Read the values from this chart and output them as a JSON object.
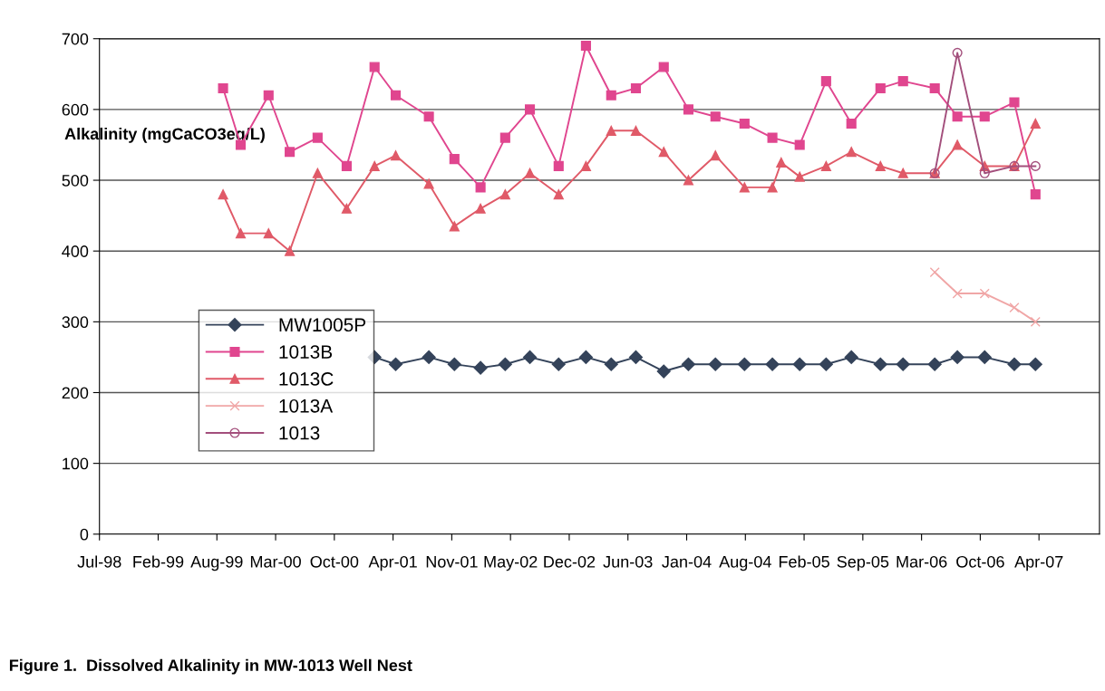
{
  "chart_data": {
    "type": "line",
    "title": "Figure 1.  Dissolved Alkalinity in MW-1013 Well Nest",
    "ylabel": "Alkalinity (mgCaCO3eq/L)",
    "xlim": [
      "1998-07-25",
      "2007-11-21"
    ],
    "xticks": [
      {
        "value": "1998-07-25",
        "label": "Jul-98"
      },
      {
        "value": "1999-02-10",
        "label": "Feb-99"
      },
      {
        "value": "1999-08-29",
        "label": "Aug-99"
      },
      {
        "value": "2000-03-16",
        "label": "Mar-00"
      },
      {
        "value": "2000-10-02",
        "label": "Oct-00"
      },
      {
        "value": "2001-04-20",
        "label": "Apr-01"
      },
      {
        "value": "2001-11-06",
        "label": "Nov-01"
      },
      {
        "value": "2002-05-25",
        "label": "May-02"
      },
      {
        "value": "2002-12-11",
        "label": "Dec-02"
      },
      {
        "value": "2003-06-29",
        "label": "Jun-03"
      },
      {
        "value": "2004-01-15",
        "label": "Jan-04"
      },
      {
        "value": "2004-08-02",
        "label": "Aug-04"
      },
      {
        "value": "2005-02-18",
        "label": "Feb-05"
      },
      {
        "value": "2005-09-06",
        "label": "Sep-05"
      },
      {
        "value": "2006-03-25",
        "label": "Mar-06"
      },
      {
        "value": "2006-10-11",
        "label": "Oct-06"
      },
      {
        "value": "2007-04-29",
        "label": "Apr-07"
      }
    ],
    "ylim": [
      0,
      700
    ],
    "yticks": [
      0,
      100,
      200,
      300,
      400,
      500,
      600,
      700
    ],
    "grid": "y",
    "legend": "left",
    "series": [
      {
        "name": "MW1005P",
        "color": "#34435a",
        "marker": "diamond",
        "x": [
          "2001-02-16",
          "2001-04-29",
          "2001-08-20",
          "2001-11-15",
          "2002-02-12",
          "2002-05-07",
          "2002-07-30",
          "2002-11-05",
          "2003-02-06",
          "2003-05-03",
          "2003-07-26",
          "2003-10-29",
          "2004-01-21",
          "2004-04-22",
          "2004-07-30",
          "2004-11-02",
          "2005-02-03",
          "2005-05-04",
          "2005-07-29",
          "2005-11-05",
          "2006-01-21",
          "2006-05-09",
          "2006-07-25",
          "2006-10-26",
          "2007-02-04",
          "2007-04-17"
        ],
        "values": [
          250,
          240,
          250,
          240,
          235,
          240,
          250,
          240,
          250,
          240,
          250,
          230,
          240,
          240,
          240,
          240,
          240,
          240,
          250,
          240,
          240,
          240,
          250,
          250,
          240,
          240
        ]
      },
      {
        "name": "1013B",
        "color": "#e0468f",
        "marker": "square",
        "x": [
          "1999-09-19",
          "1999-11-18",
          "2000-02-21",
          "2000-05-03",
          "2000-08-06",
          "2000-11-13",
          "2001-02-16",
          "2001-04-29",
          "2001-08-20",
          "2001-11-15",
          "2002-02-12",
          "2002-05-07",
          "2002-07-30",
          "2002-11-05",
          "2003-02-06",
          "2003-05-03",
          "2003-07-26",
          "2003-10-29",
          "2004-01-21",
          "2004-04-22",
          "2004-07-30",
          "2004-11-02",
          "2005-02-03",
          "2005-05-04",
          "2005-07-29",
          "2005-11-05",
          "2006-01-21",
          "2006-05-09",
          "2006-07-25",
          "2006-10-26",
          "2007-02-04",
          "2007-04-17"
        ],
        "values": [
          630,
          550,
          620,
          540,
          560,
          520,
          660,
          620,
          590,
          530,
          490,
          560,
          600,
          520,
          690,
          620,
          630,
          660,
          600,
          590,
          580,
          560,
          550,
          640,
          580,
          630,
          640,
          630,
          590,
          590,
          610,
          480
        ]
      },
      {
        "name": "1013C",
        "color": "#e05a68",
        "marker": "triangle",
        "x": [
          "1999-09-19",
          "1999-11-18",
          "2000-02-21",
          "2000-05-03",
          "2000-08-06",
          "2000-11-13",
          "2001-02-16",
          "2001-04-29",
          "2001-08-20",
          "2001-11-15",
          "2002-02-12",
          "2002-05-07",
          "2002-07-30",
          "2002-11-05",
          "2003-02-06",
          "2003-05-03",
          "2003-07-26",
          "2003-10-29",
          "2004-01-21",
          "2004-04-22",
          "2004-07-30",
          "2004-11-02",
          "2004-12-02",
          "2005-02-03",
          "2005-05-04",
          "2005-07-29",
          "2005-11-05",
          "2006-01-21",
          "2006-05-09",
          "2006-07-25",
          "2006-10-26",
          "2007-02-04",
          "2007-04-17"
        ],
        "values": [
          480,
          425,
          425,
          400,
          510,
          460,
          520,
          535,
          495,
          435,
          460,
          480,
          510,
          480,
          520,
          570,
          570,
          540,
          500,
          535,
          490,
          490,
          525,
          505,
          520,
          540,
          520,
          510,
          510,
          550,
          520,
          520,
          580
        ]
      },
      {
        "name": "1013A",
        "color": "#f0a6a6",
        "marker": "cross",
        "x": [
          "2006-05-09",
          "2006-07-25",
          "2006-10-26",
          "2007-02-04",
          "2007-04-17"
        ],
        "values": [
          370,
          340,
          340,
          320,
          300
        ]
      },
      {
        "name": "1013",
        "color": "#a34f7c",
        "marker": "circle",
        "x": [
          "2006-05-09",
          "2006-07-25",
          "2006-10-26",
          "2007-02-04",
          "2007-04-17"
        ],
        "values": [
          510,
          680,
          510,
          520,
          520
        ]
      }
    ]
  }
}
